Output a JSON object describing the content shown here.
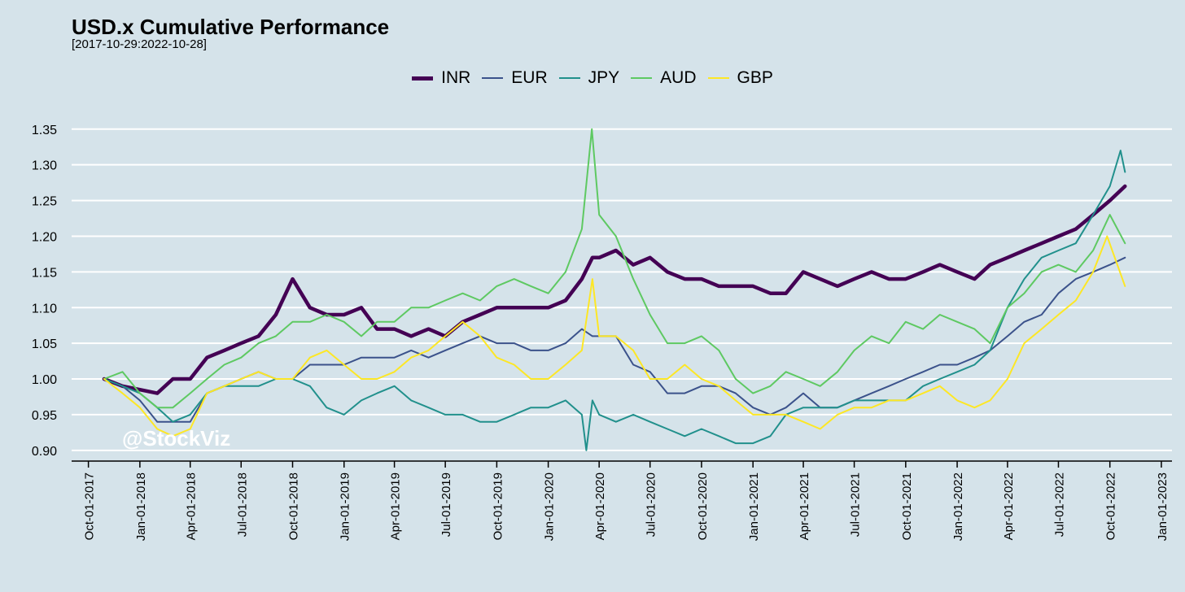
{
  "chart_data": {
    "type": "line",
    "title": "USD.x Cumulative Performance",
    "subtitle": "[2017-10-29:2022-10-28]",
    "watermark": "@StockViz",
    "xlabel": "",
    "ylabel": "",
    "x_type": "date",
    "xlim": [
      "2017-09-01",
      "2023-01-20"
    ],
    "ylim": [
      0.885,
      1.36
    ],
    "y_ticks": [
      0.9,
      0.95,
      1.0,
      1.05,
      1.1,
      1.15,
      1.2,
      1.25,
      1.3,
      1.35
    ],
    "y_tick_labels": [
      "0.90",
      "0.95",
      "1.00",
      "1.05",
      "1.10",
      "1.15",
      "1.20",
      "1.25",
      "1.30",
      "1.35"
    ],
    "x_ticks": [
      "2017-10-01",
      "2018-01-01",
      "2018-04-01",
      "2018-07-01",
      "2018-10-01",
      "2019-01-01",
      "2019-04-01",
      "2019-07-01",
      "2019-10-01",
      "2020-01-01",
      "2020-04-01",
      "2020-07-01",
      "2020-10-01",
      "2021-01-01",
      "2021-04-01",
      "2021-07-01",
      "2021-10-01",
      "2022-01-01",
      "2022-04-01",
      "2022-07-01",
      "2022-10-01",
      "2023-01-01"
    ],
    "x_tick_labels": [
      "Oct-01-2017",
      "Jan-01-2018",
      "Apr-01-2018",
      "Jul-01-2018",
      "Oct-01-2018",
      "Jan-01-2019",
      "Apr-01-2019",
      "Jul-01-2019",
      "Oct-01-2019",
      "Jan-01-2020",
      "Apr-01-2020",
      "Jul-01-2020",
      "Oct-01-2020",
      "Jan-01-2021",
      "Apr-01-2021",
      "Jul-01-2021",
      "Oct-01-2021",
      "Jan-01-2022",
      "Apr-01-2022",
      "Jul-01-2022",
      "Oct-01-2022",
      "Jan-01-2023"
    ],
    "grid": "horizontal",
    "legend_position": "top",
    "series": [
      {
        "name": "INR",
        "color": "#440154",
        "x": [
          "2017-10-29",
          "2017-12-01",
          "2018-01-01",
          "2018-02-01",
          "2018-03-01",
          "2018-04-01",
          "2018-05-01",
          "2018-06-01",
          "2018-07-01",
          "2018-08-01",
          "2018-09-01",
          "2018-10-01",
          "2018-11-01",
          "2018-12-01",
          "2019-01-01",
          "2019-02-01",
          "2019-03-01",
          "2019-04-01",
          "2019-05-01",
          "2019-06-01",
          "2019-07-01",
          "2019-08-01",
          "2019-09-01",
          "2019-10-01",
          "2019-11-01",
          "2019-12-01",
          "2020-01-01",
          "2020-02-01",
          "2020-03-01",
          "2020-03-20",
          "2020-04-01",
          "2020-05-01",
          "2020-06-01",
          "2020-07-01",
          "2020-08-01",
          "2020-09-01",
          "2020-10-01",
          "2020-11-01",
          "2020-12-01",
          "2021-01-01",
          "2021-02-01",
          "2021-03-01",
          "2021-04-01",
          "2021-05-01",
          "2021-06-01",
          "2021-07-01",
          "2021-08-01",
          "2021-09-01",
          "2021-10-01",
          "2021-11-01",
          "2021-12-01",
          "2022-01-01",
          "2022-02-01",
          "2022-03-01",
          "2022-04-01",
          "2022-05-01",
          "2022-06-01",
          "2022-07-01",
          "2022-08-01",
          "2022-09-01",
          "2022-10-01",
          "2022-10-28"
        ],
        "y": [
          1.0,
          0.99,
          0.985,
          0.98,
          1.0,
          1.0,
          1.03,
          1.04,
          1.05,
          1.06,
          1.09,
          1.14,
          1.1,
          1.09,
          1.09,
          1.1,
          1.07,
          1.07,
          1.06,
          1.07,
          1.06,
          1.08,
          1.09,
          1.1,
          1.1,
          1.1,
          1.1,
          1.11,
          1.14,
          1.17,
          1.17,
          1.18,
          1.16,
          1.17,
          1.15,
          1.14,
          1.14,
          1.13,
          1.13,
          1.13,
          1.12,
          1.12,
          1.15,
          1.14,
          1.13,
          1.14,
          1.15,
          1.14,
          1.14,
          1.15,
          1.16,
          1.15,
          1.14,
          1.16,
          1.17,
          1.18,
          1.19,
          1.2,
          1.21,
          1.23,
          1.25,
          1.27
        ]
      },
      {
        "name": "EUR",
        "color": "#3b528b",
        "x": [
          "2017-10-29",
          "2017-12-01",
          "2018-01-01",
          "2018-02-01",
          "2018-03-01",
          "2018-04-01",
          "2018-05-01",
          "2018-06-01",
          "2018-07-01",
          "2018-08-01",
          "2018-09-01",
          "2018-10-01",
          "2018-11-01",
          "2018-12-01",
          "2019-01-01",
          "2019-02-01",
          "2019-03-01",
          "2019-04-01",
          "2019-05-01",
          "2019-06-01",
          "2019-07-01",
          "2019-08-01",
          "2019-09-01",
          "2019-10-01",
          "2019-11-01",
          "2019-12-01",
          "2020-01-01",
          "2020-02-01",
          "2020-03-01",
          "2020-03-20",
          "2020-04-01",
          "2020-05-01",
          "2020-06-01",
          "2020-07-01",
          "2020-08-01",
          "2020-09-01",
          "2020-10-01",
          "2020-11-01",
          "2020-12-01",
          "2021-01-01",
          "2021-02-01",
          "2021-03-01",
          "2021-04-01",
          "2021-05-01",
          "2021-06-01",
          "2021-07-01",
          "2021-08-01",
          "2021-09-01",
          "2021-10-01",
          "2021-11-01",
          "2021-12-01",
          "2022-01-01",
          "2022-02-01",
          "2022-03-01",
          "2022-04-01",
          "2022-05-01",
          "2022-06-01",
          "2022-07-01",
          "2022-08-01",
          "2022-09-01",
          "2022-10-01",
          "2022-10-28"
        ],
        "y": [
          1.0,
          0.99,
          0.97,
          0.94,
          0.94,
          0.94,
          0.98,
          0.99,
          1.0,
          1.01,
          1.0,
          1.0,
          1.02,
          1.02,
          1.02,
          1.03,
          1.03,
          1.03,
          1.04,
          1.03,
          1.04,
          1.05,
          1.06,
          1.05,
          1.05,
          1.04,
          1.04,
          1.05,
          1.07,
          1.06,
          1.06,
          1.06,
          1.02,
          1.01,
          0.98,
          0.98,
          0.99,
          0.99,
          0.98,
          0.96,
          0.95,
          0.96,
          0.98,
          0.96,
          0.96,
          0.97,
          0.98,
          0.99,
          1.0,
          1.01,
          1.02,
          1.02,
          1.03,
          1.04,
          1.06,
          1.08,
          1.09,
          1.12,
          1.14,
          1.15,
          1.16,
          1.17
        ]
      },
      {
        "name": "JPY",
        "color": "#21908c",
        "x": [
          "2017-10-29",
          "2017-12-01",
          "2018-01-01",
          "2018-02-01",
          "2018-03-01",
          "2018-04-01",
          "2018-05-01",
          "2018-06-01",
          "2018-07-01",
          "2018-08-01",
          "2018-09-01",
          "2018-10-01",
          "2018-11-01",
          "2018-12-01",
          "2019-01-01",
          "2019-02-01",
          "2019-03-01",
          "2019-04-01",
          "2019-05-01",
          "2019-06-01",
          "2019-07-01",
          "2019-08-01",
          "2019-09-01",
          "2019-10-01",
          "2019-11-01",
          "2019-12-01",
          "2020-01-01",
          "2020-02-01",
          "2020-03-01",
          "2020-03-09",
          "2020-03-20",
          "2020-04-01",
          "2020-05-01",
          "2020-06-01",
          "2020-07-01",
          "2020-08-01",
          "2020-09-01",
          "2020-10-01",
          "2020-11-01",
          "2020-12-01",
          "2021-01-01",
          "2021-02-01",
          "2021-03-01",
          "2021-04-01",
          "2021-05-01",
          "2021-06-01",
          "2021-07-01",
          "2021-08-01",
          "2021-09-01",
          "2021-10-01",
          "2021-11-01",
          "2021-12-01",
          "2022-01-01",
          "2022-02-01",
          "2022-03-01",
          "2022-04-01",
          "2022-05-01",
          "2022-06-01",
          "2022-07-01",
          "2022-08-01",
          "2022-09-01",
          "2022-10-01",
          "2022-10-20",
          "2022-10-28"
        ],
        "y": [
          1.0,
          0.99,
          0.98,
          0.96,
          0.94,
          0.95,
          0.98,
          0.99,
          0.99,
          0.99,
          1.0,
          1.0,
          0.99,
          0.96,
          0.95,
          0.97,
          0.98,
          0.99,
          0.97,
          0.96,
          0.95,
          0.95,
          0.94,
          0.94,
          0.95,
          0.96,
          0.96,
          0.97,
          0.95,
          0.9,
          0.97,
          0.95,
          0.94,
          0.95,
          0.94,
          0.93,
          0.92,
          0.93,
          0.92,
          0.91,
          0.91,
          0.92,
          0.95,
          0.96,
          0.96,
          0.96,
          0.97,
          0.97,
          0.97,
          0.97,
          0.99,
          1.0,
          1.01,
          1.02,
          1.04,
          1.1,
          1.14,
          1.17,
          1.18,
          1.19,
          1.23,
          1.27,
          1.32,
          1.29
        ]
      },
      {
        "name": "AUD",
        "color": "#5ec962",
        "x": [
          "2017-10-29",
          "2017-12-01",
          "2018-01-01",
          "2018-02-01",
          "2018-03-01",
          "2018-04-01",
          "2018-05-01",
          "2018-06-01",
          "2018-07-01",
          "2018-08-01",
          "2018-09-01",
          "2018-10-01",
          "2018-11-01",
          "2018-12-01",
          "2019-01-01",
          "2019-02-01",
          "2019-03-01",
          "2019-04-01",
          "2019-05-01",
          "2019-06-01",
          "2019-07-01",
          "2019-08-01",
          "2019-09-01",
          "2019-10-01",
          "2019-11-01",
          "2019-12-01",
          "2020-01-01",
          "2020-02-01",
          "2020-03-01",
          "2020-03-19",
          "2020-04-01",
          "2020-05-01",
          "2020-06-01",
          "2020-07-01",
          "2020-08-01",
          "2020-09-01",
          "2020-10-01",
          "2020-11-01",
          "2020-12-01",
          "2021-01-01",
          "2021-02-01",
          "2021-03-01",
          "2021-04-01",
          "2021-05-01",
          "2021-06-01",
          "2021-07-01",
          "2021-08-01",
          "2021-09-01",
          "2021-10-01",
          "2021-11-01",
          "2021-12-01",
          "2022-01-01",
          "2022-02-01",
          "2022-03-01",
          "2022-04-01",
          "2022-05-01",
          "2022-06-01",
          "2022-07-01",
          "2022-08-01",
          "2022-09-01",
          "2022-10-01",
          "2022-10-28"
        ],
        "y": [
          1.0,
          1.01,
          0.98,
          0.96,
          0.96,
          0.98,
          1.0,
          1.02,
          1.03,
          1.05,
          1.06,
          1.08,
          1.08,
          1.09,
          1.08,
          1.06,
          1.08,
          1.08,
          1.1,
          1.1,
          1.11,
          1.12,
          1.11,
          1.13,
          1.14,
          1.13,
          1.12,
          1.15,
          1.21,
          1.35,
          1.23,
          1.2,
          1.14,
          1.09,
          1.05,
          1.05,
          1.06,
          1.04,
          1.0,
          0.98,
          0.99,
          1.01,
          1.0,
          0.99,
          1.01,
          1.04,
          1.06,
          1.05,
          1.08,
          1.07,
          1.09,
          1.08,
          1.07,
          1.05,
          1.1,
          1.12,
          1.15,
          1.16,
          1.15,
          1.18,
          1.23,
          1.19
        ]
      },
      {
        "name": "GBP",
        "color": "#fde725",
        "x": [
          "2017-10-29",
          "2017-12-01",
          "2018-01-01",
          "2018-02-01",
          "2018-03-01",
          "2018-04-01",
          "2018-05-01",
          "2018-06-01",
          "2018-07-01",
          "2018-08-01",
          "2018-09-01",
          "2018-10-01",
          "2018-11-01",
          "2018-12-01",
          "2019-01-01",
          "2019-02-01",
          "2019-03-01",
          "2019-04-01",
          "2019-05-01",
          "2019-06-01",
          "2019-07-01",
          "2019-08-01",
          "2019-09-01",
          "2019-10-01",
          "2019-11-01",
          "2019-12-01",
          "2020-01-01",
          "2020-02-01",
          "2020-03-01",
          "2020-03-20",
          "2020-04-01",
          "2020-05-01",
          "2020-06-01",
          "2020-07-01",
          "2020-08-01",
          "2020-09-01",
          "2020-10-01",
          "2020-11-01",
          "2020-12-01",
          "2021-01-01",
          "2021-02-01",
          "2021-03-01",
          "2021-04-01",
          "2021-05-01",
          "2021-06-01",
          "2021-07-01",
          "2021-08-01",
          "2021-09-01",
          "2021-10-01",
          "2021-11-01",
          "2021-12-01",
          "2022-01-01",
          "2022-02-01",
          "2022-03-01",
          "2022-04-01",
          "2022-05-01",
          "2022-06-01",
          "2022-07-01",
          "2022-08-01",
          "2022-09-01",
          "2022-09-26",
          "2022-10-28"
        ],
        "y": [
          1.0,
          0.98,
          0.96,
          0.93,
          0.92,
          0.93,
          0.98,
          0.99,
          1.0,
          1.01,
          1.0,
          1.0,
          1.03,
          1.04,
          1.02,
          1.0,
          1.0,
          1.01,
          1.03,
          1.04,
          1.06,
          1.08,
          1.06,
          1.03,
          1.02,
          1.0,
          1.0,
          1.02,
          1.04,
          1.14,
          1.06,
          1.06,
          1.04,
          1.0,
          1.0,
          1.02,
          1.0,
          0.99,
          0.97,
          0.95,
          0.95,
          0.95,
          0.94,
          0.93,
          0.95,
          0.96,
          0.96,
          0.97,
          0.97,
          0.98,
          0.99,
          0.97,
          0.96,
          0.97,
          1.0,
          1.05,
          1.07,
          1.09,
          1.11,
          1.15,
          1.2,
          1.13
        ]
      }
    ]
  }
}
